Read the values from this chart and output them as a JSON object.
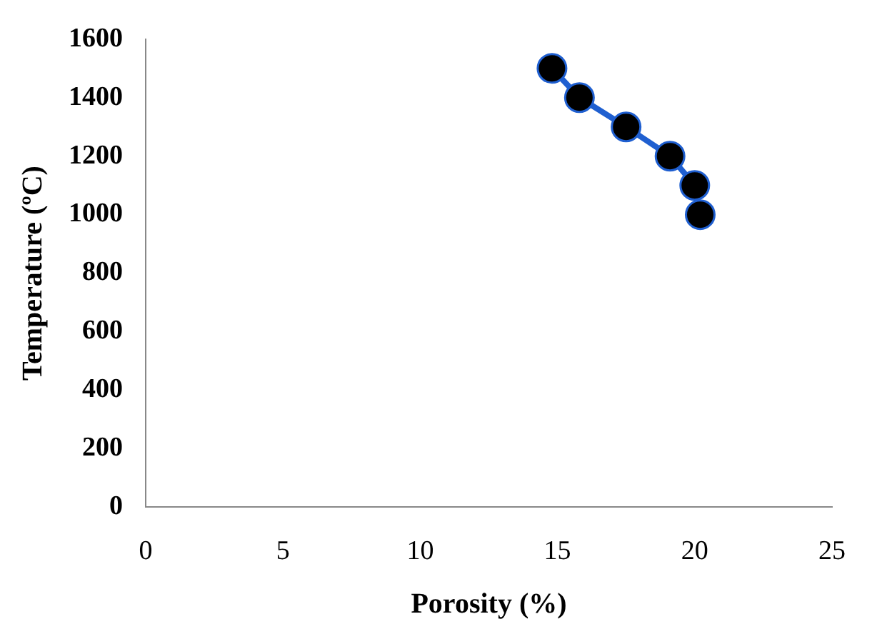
{
  "chart_data": {
    "type": "line",
    "xlabel": "Porosity (%)",
    "ylabel": "Temperature (ºC)",
    "series": [
      {
        "color": "#1f5fd0",
        "x": [
          14.8,
          15.8,
          17.5,
          19.1,
          20.0,
          20.2
        ],
        "values": [
          1500,
          1400,
          1300,
          1200,
          1100,
          1000
        ]
      }
    ],
    "xlim": [
      0,
      25
    ],
    "xticks": [
      0,
      5,
      10,
      15,
      20,
      25
    ],
    "ylim": [
      0,
      1600
    ],
    "yticks": [
      0,
      200,
      400,
      600,
      800,
      1000,
      1200,
      1400,
      1600
    ],
    "grid": false,
    "legend": false,
    "marker": "circle",
    "line_style": "solid"
  }
}
